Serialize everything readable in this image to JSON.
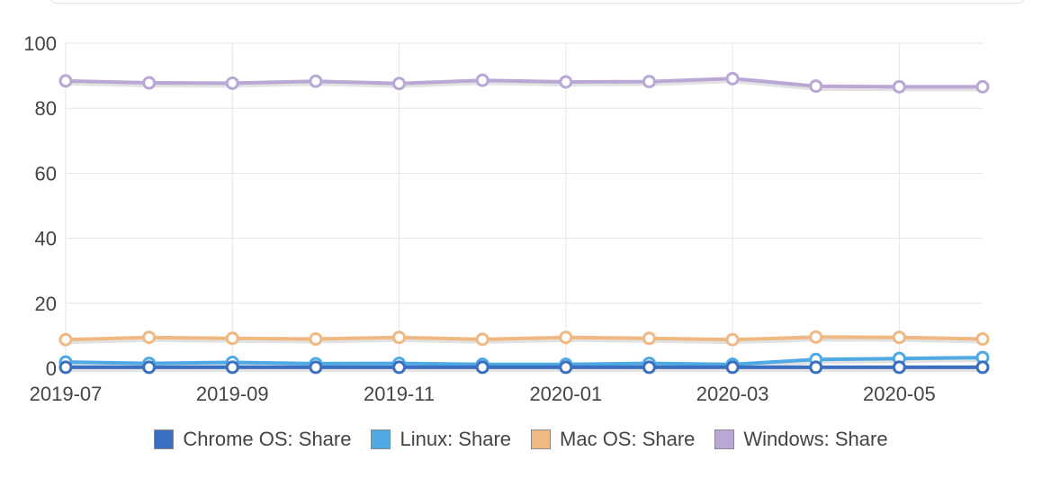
{
  "chart_data": {
    "type": "line",
    "x": [
      "2019-07",
      "2019-08",
      "2019-09",
      "2019-10",
      "2019-11",
      "2019-12",
      "2020-01",
      "2020-02",
      "2020-03",
      "2020-04",
      "2020-05",
      "2020-06"
    ],
    "x_tick_labels": [
      "2019-07",
      "2019-09",
      "2019-11",
      "2020-01",
      "2020-03",
      "2020-05"
    ],
    "y_ticks": [
      0,
      20,
      40,
      60,
      80,
      100
    ],
    "ylim": [
      0,
      100
    ],
    "grid": true,
    "legend_position": "bottom",
    "series": [
      {
        "name": "Chrome OS: Share",
        "color": "#3b6fbf",
        "values": [
          0.3,
          0.3,
          0.3,
          0.3,
          0.3,
          0.3,
          0.3,
          0.3,
          0.3,
          0.3,
          0.3,
          0.3
        ]
      },
      {
        "name": "Linux: Share",
        "color": "#4fa9e3",
        "values": [
          1.9,
          1.5,
          1.8,
          1.4,
          1.5,
          1.2,
          1.2,
          1.5,
          1.2,
          2.7,
          3.0,
          3.3
        ]
      },
      {
        "name": "Mac OS: Share",
        "color": "#f0b983",
        "values": [
          8.8,
          9.5,
          9.2,
          9.0,
          9.5,
          8.9,
          9.5,
          9.2,
          8.8,
          9.6,
          9.5,
          9.0
        ]
      },
      {
        "name": "Windows: Share",
        "color": "#b9a7d6",
        "values": [
          88.4,
          87.8,
          87.7,
          88.3,
          87.6,
          88.6,
          88.1,
          88.2,
          89.1,
          86.8,
          86.6,
          86.6
        ]
      }
    ]
  }
}
